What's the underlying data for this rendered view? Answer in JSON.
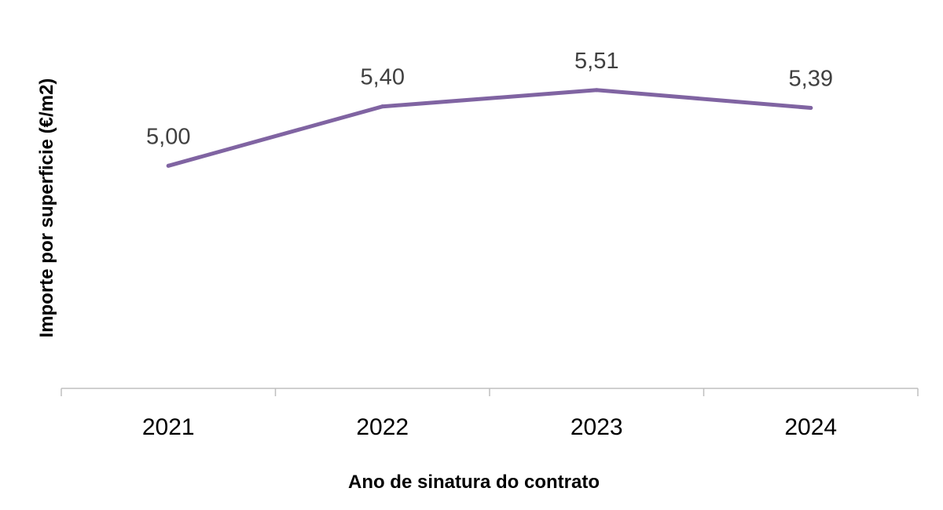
{
  "chart_data": {
    "type": "line",
    "title": "",
    "categories": [
      "2021",
      "2022",
      "2023",
      "2024"
    ],
    "series": [
      {
        "name": "Importe por superficie",
        "values": [
          5.0,
          5.4,
          5.51,
          5.39
        ],
        "labels": [
          "5,00",
          "5,40",
          "5,51",
          "5,39"
        ]
      }
    ],
    "xlabel": "Ano de sinatura do contrato",
    "ylabel": "Importe por superficie (€/m2)",
    "ylim": [
      3.5,
      5.8
    ],
    "grid": false,
    "legend": "none",
    "colors": {
      "line": "#8064A2",
      "axis": "#BFBFBF"
    }
  }
}
